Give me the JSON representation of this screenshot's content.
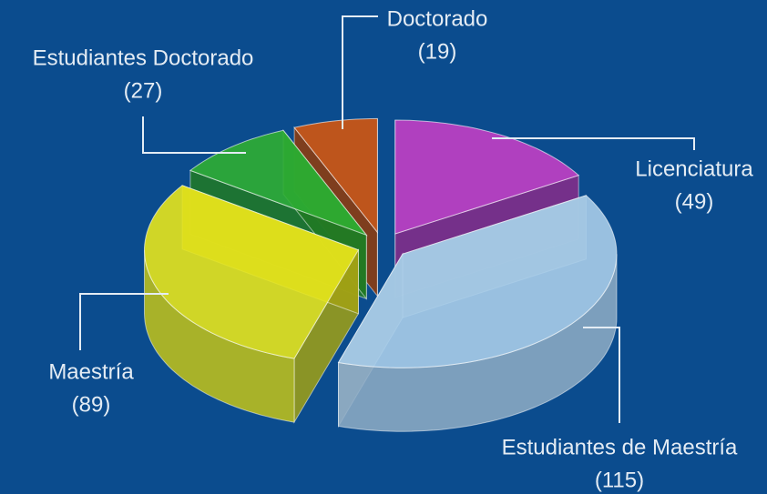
{
  "chart_data": {
    "type": "pie",
    "categories": [
      "Licenciatura",
      "Estudiantes de Maestría",
      "Maestría",
      "Estudiantes Doctorado",
      "Doctorado"
    ],
    "values": [
      49,
      115,
      89,
      27,
      19
    ],
    "value_labels": [
      "(49)",
      "(115)",
      "(89)",
      "(27)",
      "(19)"
    ],
    "colors": [
      "#c23fc4",
      "#a9cde9",
      "#e6e61c",
      "#2fae32",
      "#d2560f"
    ]
  }
}
